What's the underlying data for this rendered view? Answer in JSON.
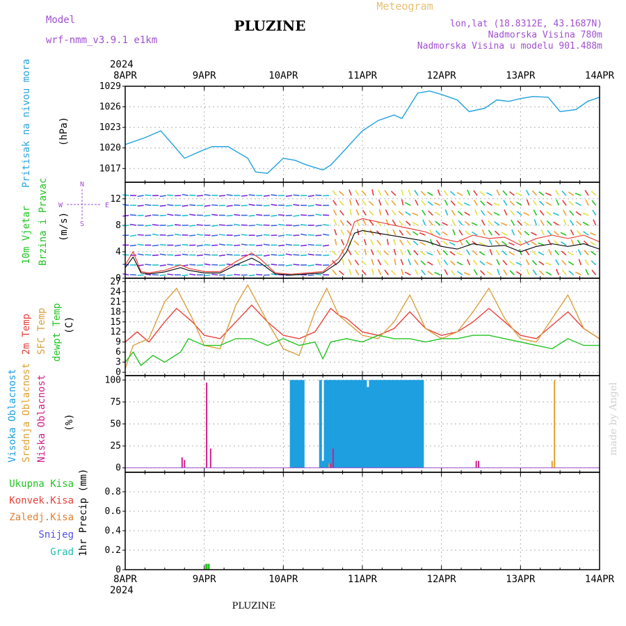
{
  "header": {
    "title": "PLUZINE",
    "subtitle": "Meteogram",
    "model_label": "Model",
    "model_name": "wrf-nmm_v3.9.1 e1km",
    "lonlat": "lon,lat (18.8312E, 43.1687N)",
    "elevation": "Nadmorska Visina 780m",
    "model_elevation": "Nadmorska Visina u modelu 901.488m",
    "footer": "PLUZINE",
    "watermark": "made by Angel"
  },
  "colors": {
    "pressure": "#2aa6de",
    "temp2m": "#e8403a",
    "sfc": "#d9a140",
    "dewpt": "#22c422",
    "cloud_high": "#1e9fe0",
    "cloud_mid": "#e0a030",
    "cloud_low": "#d01e8c",
    "precip_total": "#22c422",
    "header_purple": "#a050d0",
    "subtitle_orange": "#e8c070"
  },
  "time_axis": {
    "year": "2024",
    "labels": [
      "8APR",
      "9APR",
      "10APR",
      "11APR",
      "12APR",
      "13APR",
      "14APR"
    ]
  },
  "wind_legend": {
    "north": "N",
    "south": "S",
    "west": "W",
    "east": "E"
  },
  "chart_data": [
    {
      "type": "line",
      "name": "pressure",
      "ylabel": [
        "Pritisak na nivou mora",
        "(hPa)"
      ],
      "ylim": [
        1015,
        1029
      ],
      "yticks": [
        1017,
        1020,
        1023,
        1026,
        1029
      ],
      "x_days": [
        0,
        0.25,
        0.45,
        0.6,
        0.75,
        0.95,
        1.1,
        1.3,
        1.55,
        1.65,
        1.8,
        2.0,
        2.15,
        2.3,
        2.5,
        2.6,
        2.8,
        3.0,
        3.2,
        3.4,
        3.5,
        3.7,
        3.85,
        4.0,
        4.2,
        4.35,
        4.55,
        4.7,
        4.85,
        5.0,
        5.15,
        5.35,
        5.5,
        5.7,
        5.85,
        6.0
      ],
      "values": [
        1020.5,
        1021.5,
        1022.5,
        1020.5,
        1018.5,
        1019.5,
        1020.2,
        1020.2,
        1018.5,
        1016.5,
        1016.3,
        1018.5,
        1018.2,
        1017.5,
        1016.8,
        1017.5,
        1020.0,
        1022.5,
        1024.0,
        1024.8,
        1024.3,
        1028.0,
        1028.3,
        1027.8,
        1027.0,
        1025.3,
        1025.8,
        1027.0,
        1026.8,
        1027.2,
        1027.5,
        1027.4,
        1025.3,
        1025.6,
        1026.8,
        1027.4
      ]
    },
    {
      "type": "line",
      "name": "wind",
      "ylabel": [
        "10m Vjetar",
        "Brzina i Pravac",
        "(m/s)"
      ],
      "ylim": [
        0,
        14.5
      ],
      "yticks": [
        0,
        4,
        8,
        12
      ],
      "x_days": [
        0,
        0.1,
        0.2,
        0.3,
        0.5,
        0.7,
        0.8,
        1.0,
        1.2,
        1.4,
        1.6,
        1.7,
        1.9,
        2.1,
        2.3,
        2.5,
        2.6,
        2.7,
        2.8,
        2.9,
        3.0,
        3.2,
        3.4,
        3.6,
        3.8,
        4.0,
        4.2,
        4.4,
        4.6,
        4.8,
        5.0,
        5.2,
        5.4,
        5.6,
        5.8,
        6.0
      ],
      "values": [
        2.0,
        4.0,
        1.0,
        0.8,
        1.2,
        2.0,
        1.5,
        1.0,
        1.0,
        2.5,
        3.8,
        3.0,
        0.8,
        0.6,
        0.8,
        1.0,
        2.0,
        3.0,
        5.0,
        8.5,
        9.0,
        8.5,
        8.0,
        7.5,
        7.0,
        6.0,
        5.5,
        6.5,
        6.0,
        6.2,
        5.0,
        6.0,
        6.5,
        6.0,
        6.5,
        5.5
      ]
    },
    {
      "type": "line",
      "name": "temperature",
      "ylabel": [
        "2m Temp",
        "SFC Temp",
        "dewpt Temp",
        "(C)"
      ],
      "ylim": [
        -1,
        28
      ],
      "yticks": [
        0,
        3,
        6,
        9,
        12,
        15,
        18,
        21,
        24,
        27
      ],
      "series": [
        {
          "name": "2m Temp",
          "x_days": [
            0,
            0.15,
            0.3,
            0.5,
            0.65,
            0.85,
            1.0,
            1.2,
            1.4,
            1.6,
            1.8,
            2.0,
            2.2,
            2.4,
            2.6,
            2.7,
            2.8,
            3.0,
            3.2,
            3.4,
            3.6,
            3.8,
            4.0,
            4.2,
            4.4,
            4.6,
            4.8,
            5.0,
            5.2,
            5.4,
            5.6,
            5.8,
            6.0
          ],
          "values": [
            9,
            12,
            9,
            15,
            19,
            15,
            11,
            10,
            15,
            20,
            15,
            11,
            10,
            12,
            19,
            17,
            16,
            12,
            11,
            13,
            18,
            13,
            11,
            12,
            15,
            19,
            15,
            11,
            10,
            14,
            18,
            13,
            10
          ]
        },
        {
          "name": "SFC Temp",
          "x_days": [
            0,
            0.1,
            0.3,
            0.5,
            0.65,
            0.85,
            1.0,
            1.2,
            1.4,
            1.55,
            1.8,
            2.0,
            2.2,
            2.4,
            2.55,
            2.7,
            2.8,
            3.0,
            3.2,
            3.4,
            3.6,
            3.8,
            4.0,
            4.2,
            4.4,
            4.6,
            4.8,
            5.0,
            5.2,
            5.4,
            5.6,
            5.8,
            6.0
          ],
          "values": [
            1,
            8,
            10,
            21,
            25,
            16,
            8,
            7,
            20,
            26,
            15,
            7,
            5,
            18,
            25,
            17,
            15,
            11,
            10,
            15,
            23,
            13,
            10,
            12,
            18,
            25,
            16,
            10,
            9,
            16,
            23,
            13,
            10
          ]
        },
        {
          "name": "dewpt Temp",
          "x_days": [
            0,
            0.1,
            0.2,
            0.35,
            0.5,
            0.7,
            0.8,
            1.0,
            1.2,
            1.4,
            1.6,
            1.8,
            2.0,
            2.2,
            2.4,
            2.5,
            2.6,
            2.8,
            3.0,
            3.2,
            3.4,
            3.6,
            3.8,
            4.0,
            4.2,
            4.4,
            4.6,
            4.8,
            5.0,
            5.2,
            5.4,
            5.6,
            5.8,
            6.0
          ],
          "values": [
            3,
            6,
            2,
            5,
            3,
            6,
            10,
            8,
            8,
            10,
            10,
            8,
            10,
            8,
            9,
            4,
            9,
            10,
            9,
            11,
            10,
            10,
            9,
            10,
            10,
            11,
            11,
            10,
            9,
            8,
            7,
            10,
            8,
            8
          ]
        }
      ]
    },
    {
      "type": "bar",
      "name": "cloud_cover",
      "ylabel": [
        "Visoka Oblacnost",
        "Srednja Oblacnost",
        "Niska Oblacnost",
        "(%)"
      ],
      "ylim": [
        -5,
        105
      ],
      "yticks": [
        0,
        25,
        50,
        75,
        100
      ],
      "series": [
        {
          "name": "Visoka Oblacnost",
          "x_days": [
            2.1,
            2.13,
            2.16,
            2.19,
            2.22,
            2.25,
            2.47,
            2.5,
            2.53,
            2.56,
            2.59,
            2.62,
            2.65,
            2.68,
            2.71,
            2.74,
            2.77,
            2.8,
            2.83,
            2.86,
            2.89,
            2.92,
            2.95,
            2.98,
            3.01,
            3.04,
            3.07,
            3.1,
            3.13,
            3.16,
            3.19,
            3.22,
            3.25,
            3.28,
            3.31,
            3.34,
            3.37,
            3.4,
            3.43,
            3.46,
            3.49,
            3.52,
            3.55,
            3.58,
            3.61,
            3.64,
            3.67,
            3.7,
            3.73,
            3.76
          ],
          "values": [
            100,
            100,
            100,
            100,
            100,
            100,
            100,
            8,
            100,
            100,
            100,
            100,
            100,
            100,
            100,
            100,
            100,
            100,
            100,
            100,
            100,
            100,
            100,
            100,
            100,
            100,
            92,
            100,
            100,
            100,
            100,
            100,
            100,
            100,
            100,
            100,
            100,
            100,
            100,
            100,
            100,
            100,
            100,
            100,
            100,
            100,
            100,
            100,
            100,
            100
          ]
        },
        {
          "name": "Srednja Oblacnost",
          "x_days": [
            0.98,
            2.58,
            5.4,
            5.43
          ],
          "values": [
            1,
            5,
            8,
            100
          ]
        },
        {
          "name": "Niska Oblacnost",
          "x_days": [
            0.72,
            0.75,
            1.03,
            1.08,
            2.6,
            2.63,
            4.44,
            4.47
          ],
          "values": [
            12,
            9,
            97,
            22,
            5,
            22,
            8,
            8
          ]
        }
      ]
    },
    {
      "type": "bar",
      "name": "precipitation",
      "ylabel": [
        "Ukupna Kisa",
        "Konvek.Kisa",
        "Zaledj.Kisa",
        "Snijeg",
        "Grad",
        "1hr Precip (mm)"
      ],
      "ylim": [
        0,
        1.0
      ],
      "yticks": [
        0,
        0.2,
        0.4,
        0.6,
        0.8
      ],
      "series": [
        {
          "name": "Ukupna Kisa",
          "x_days": [
            1.03,
            1.06
          ],
          "values": [
            0.06,
            0.06
          ]
        }
      ]
    }
  ]
}
